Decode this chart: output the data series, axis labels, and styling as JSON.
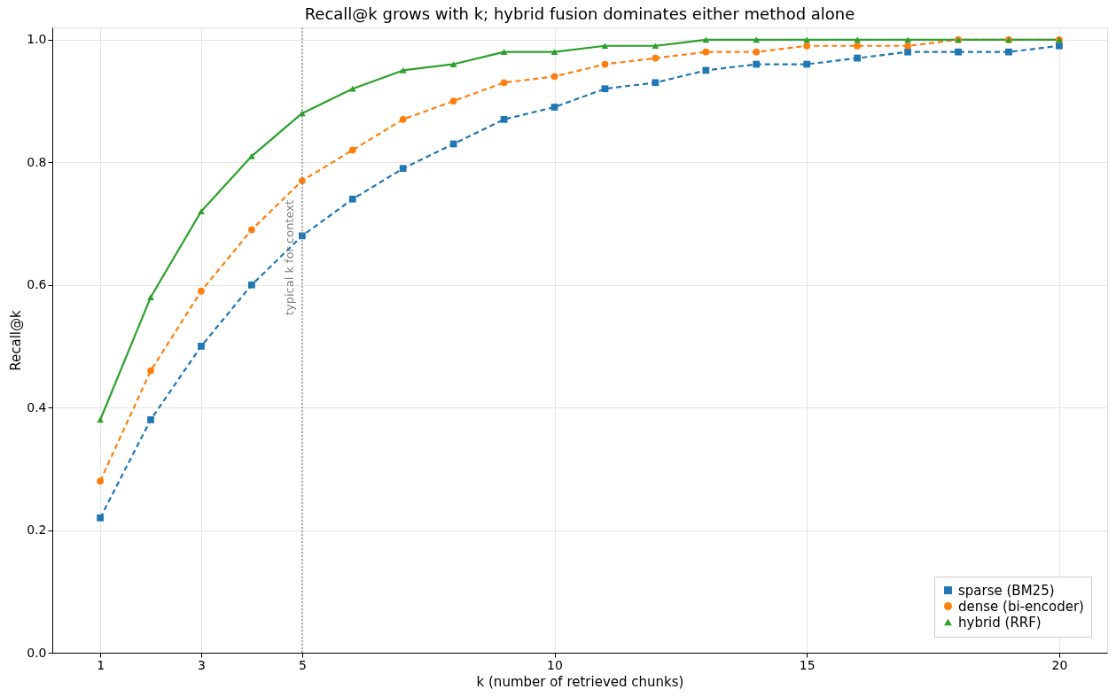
{
  "chart_data": {
    "type": "line",
    "title": "Recall@k grows with k; hybrid fusion dominates either method alone",
    "xlabel": "k (number of retrieved chunks)",
    "ylabel": "Recall@k",
    "x": [
      1,
      2,
      3,
      4,
      5,
      6,
      7,
      8,
      9,
      10,
      11,
      12,
      13,
      14,
      15,
      16,
      17,
      18,
      19,
      20
    ],
    "series": [
      {
        "name": "sparse (BM25)",
        "color": "#1f77b4",
        "marker": "square",
        "line_style": "dashed",
        "values": [
          0.22,
          0.38,
          0.5,
          0.6,
          0.68,
          0.74,
          0.79,
          0.83,
          0.87,
          0.89,
          0.92,
          0.93,
          0.95,
          0.96,
          0.96,
          0.97,
          0.98,
          0.98,
          0.98,
          0.99
        ]
      },
      {
        "name": "dense (bi-encoder)",
        "color": "#ff7f0e",
        "marker": "circle",
        "line_style": "dashed",
        "values": [
          0.28,
          0.46,
          0.59,
          0.69,
          0.77,
          0.82,
          0.87,
          0.9,
          0.93,
          0.94,
          0.96,
          0.97,
          0.98,
          0.98,
          0.99,
          0.99,
          0.99,
          1.0,
          1.0,
          1.0
        ]
      },
      {
        "name": "hybrid (RRF)",
        "color": "#2ca02c",
        "marker": "triangle",
        "line_style": "solid",
        "values": [
          0.38,
          0.58,
          0.72,
          0.81,
          0.88,
          0.92,
          0.95,
          0.96,
          0.98,
          0.98,
          0.99,
          0.99,
          1.0,
          1.0,
          1.0,
          1.0,
          1.0,
          1.0,
          1.0,
          1.0
        ]
      }
    ],
    "xlim": [
      0.05,
      20.95
    ],
    "ylim": [
      0,
      1.02
    ],
    "xticks": [
      1,
      3,
      5,
      10,
      15,
      20
    ],
    "yticks": [
      {
        "value": 0,
        "label": "0.0"
      },
      {
        "value": 0.2,
        "label": "0.2"
      },
      {
        "value": 0.4,
        "label": "0.4"
      },
      {
        "value": 0.6,
        "label": "0.6"
      },
      {
        "value": 0.8,
        "label": "0.8"
      },
      {
        "value": 1.0,
        "label": "1.0"
      }
    ],
    "ref_lines": [
      {
        "axis": "x",
        "value": 5,
        "label": "typical k for context",
        "color": "#808080",
        "line_style": "dotted"
      }
    ],
    "grid": true,
    "legend": "bottom right"
  }
}
